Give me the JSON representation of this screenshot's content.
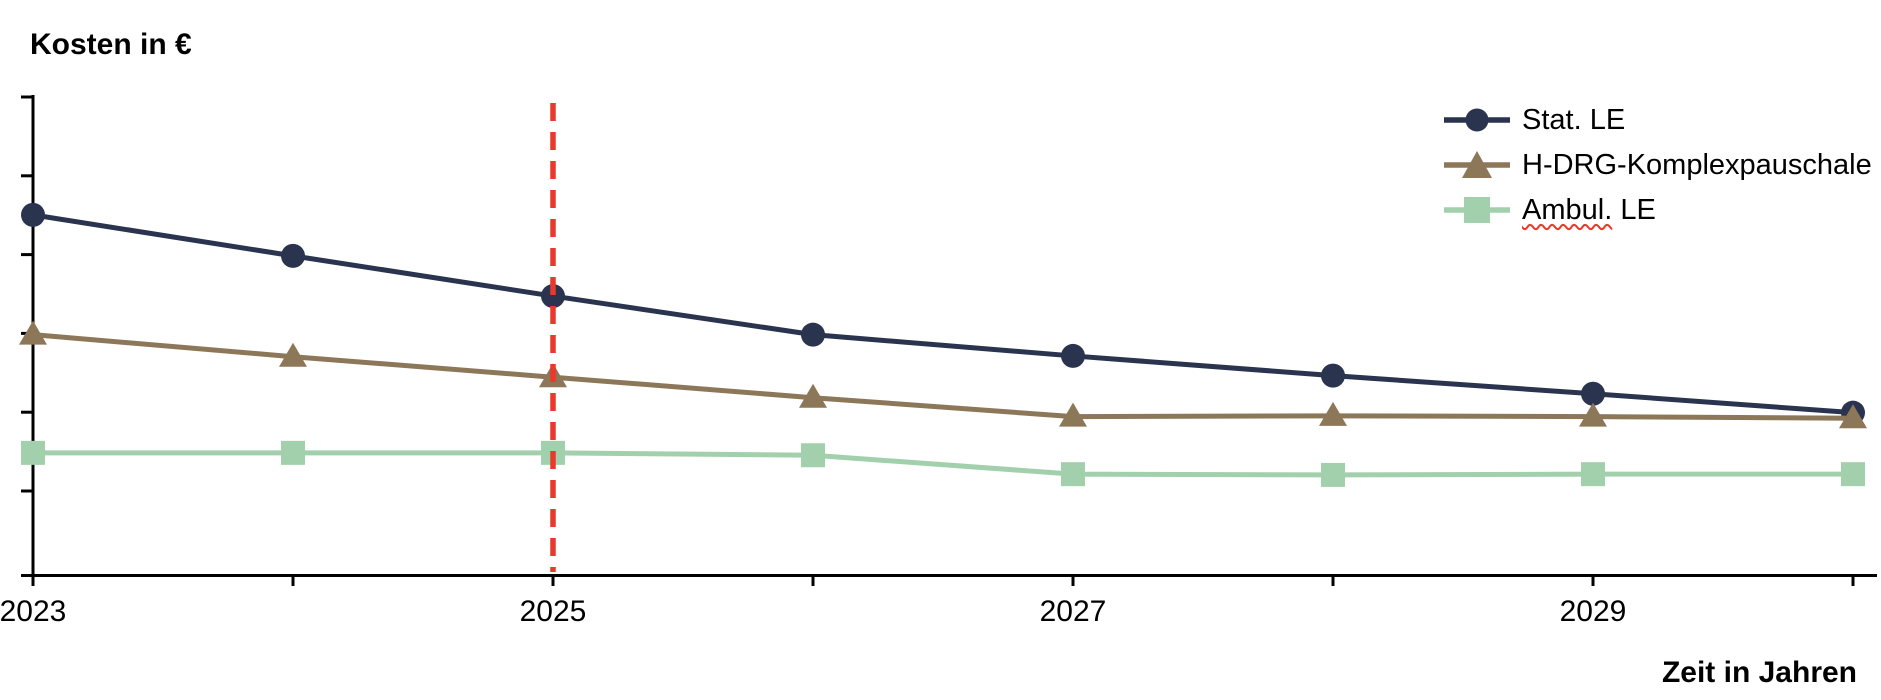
{
  "title": "Kosten in €",
  "x_axis_label": "Zeit in Jahren",
  "colors": {
    "stat_le": "#2a344f",
    "h_drg": "#8d7759",
    "ambul_le": "#a3d0ac",
    "reference_red": "#e8392a",
    "axis": "#000000"
  },
  "legend": {
    "items": [
      {
        "label": "Stat. LE"
      },
      {
        "label": "H-DRG-Komplexpauschale"
      },
      {
        "label": "Ambul. LE",
        "wavy_part": "Ambul.",
        "rest_part": " LE"
      }
    ]
  },
  "chart_data": {
    "type": "line",
    "title": "Kosten in €",
    "xlabel": "Zeit in Jahren",
    "ylabel": "Kosten in €",
    "x": [
      2023,
      2024,
      2025,
      2026,
      2027,
      2028,
      2029,
      2030
    ],
    "x_tick_labels": [
      {
        "year": 2023,
        "text": "2023"
      },
      {
        "year": 2025,
        "text": "2025"
      },
      {
        "year": 2027,
        "text": "2027"
      },
      {
        "year": 2029,
        "text": "2029"
      }
    ],
    "y_axis_numeric_labels": false,
    "y_units": "relative units (axis has unlabeled ticks; 1 = one tick interval above baseline)",
    "y_tick_count": 6,
    "ylim": [
      0,
      6.1
    ],
    "grid": false,
    "legend_position": "top-right",
    "series": [
      {
        "id": "stat-le",
        "name": "Stat. LE",
        "marker": "circle",
        "color": "#2a344f",
        "values": [
          4.57,
          4.05,
          3.54,
          3.05,
          2.78,
          2.53,
          2.3,
          2.06
        ]
      },
      {
        "id": "h-drg-komplexpauschale",
        "name": "H-DRG-Komplexpauschale",
        "marker": "triangle",
        "color": "#8d7759",
        "values": [
          3.05,
          2.77,
          2.51,
          2.25,
          2.01,
          2.02,
          2.01,
          1.99
        ]
      },
      {
        "id": "ambul-le",
        "name": "Ambul. LE",
        "marker": "square",
        "color": "#a3d0ac",
        "values": [
          1.55,
          1.55,
          1.55,
          1.52,
          1.28,
          1.27,
          1.28,
          1.28
        ]
      }
    ],
    "reference_line": {
      "x": 2025,
      "style": "dashed",
      "color": "#e8392a"
    }
  }
}
